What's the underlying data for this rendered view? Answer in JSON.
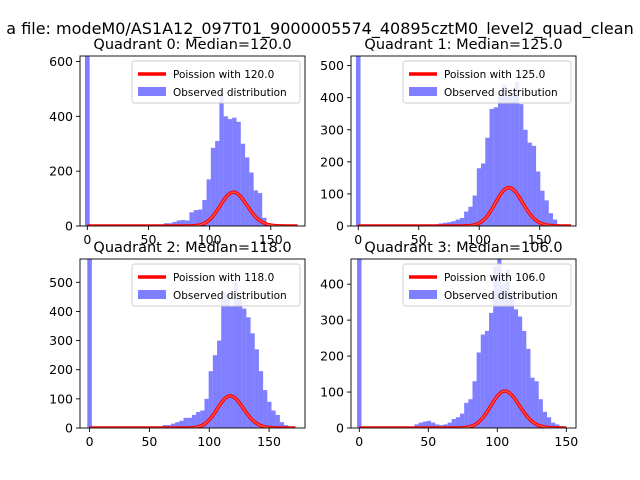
{
  "figure": {
    "suptitle": "a file: modeM0/AS1A12_097T01_9000005574_40895cztM0_level2_quad_clean"
  },
  "colors": {
    "hist": "#0000ff",
    "hist_alpha": 0.5,
    "curve": "#ff0000",
    "curve_core_alpha": 0.55
  },
  "chart_data": [
    {
      "type": "bar",
      "title": "Quadrant 0: Median=120.0",
      "legend": {
        "curve_label": "Poission with 120.0",
        "hist_label": "Observed distribution",
        "loc": "upper right"
      },
      "median": 120.0,
      "scale": 3380,
      "xlim": [
        -6,
        178
      ],
      "ylim": [
        0,
        620
      ],
      "xticks": [
        0,
        50,
        100,
        150
      ],
      "yticks": [
        0,
        200,
        400,
        600
      ],
      "spike": {
        "x": 0,
        "width": 3.8,
        "value": 620
      },
      "bin_edges": [
        52,
        55.5,
        59,
        62.5,
        66,
        69.5,
        73,
        76.5,
        80,
        83.5,
        87,
        90.5,
        94,
        97.5,
        101,
        104.5,
        108,
        111.5,
        115,
        118.5,
        122,
        125.5,
        129,
        132.5,
        136,
        139.5,
        143,
        146.5,
        150,
        153.5,
        157,
        160.5,
        164,
        167.5,
        171
      ],
      "counts": [
        5,
        5,
        5,
        10,
        10,
        15,
        20,
        22,
        20,
        50,
        58,
        60,
        95,
        170,
        285,
        310,
        485,
        400,
        390,
        395,
        380,
        300,
        250,
        195,
        130,
        120,
        30,
        10,
        5,
        5,
        5,
        2,
        0,
        0
      ],
      "curve_x_range": [
        0,
        172
      ]
    },
    {
      "type": "bar",
      "title": "Quadrant 1: Median=125.0",
      "legend": {
        "curve_label": "Poission with 125.0",
        "hist_label": "Observed distribution",
        "loc": "upper right"
      },
      "median": 125.0,
      "scale": 3350,
      "xlim": [
        -6,
        180
      ],
      "ylim": [
        0,
        530
      ],
      "xticks": [
        0,
        50,
        100,
        150
      ],
      "yticks": [
        0,
        100,
        200,
        300,
        400,
        500
      ],
      "spike": {
        "x": 0,
        "width": 3.8,
        "value": 530
      },
      "bin_edges": [
        56,
        59.5,
        63,
        66.5,
        70,
        73.5,
        77,
        80.5,
        84,
        87.5,
        91,
        94.5,
        98,
        101.5,
        105,
        108.5,
        112,
        115.5,
        119,
        122.5,
        126,
        129.5,
        133,
        136.5,
        140,
        143.5,
        147,
        150.5,
        154,
        157.5,
        161,
        164.5,
        168,
        171.5,
        175
      ],
      "counts": [
        3,
        4,
        5,
        8,
        10,
        12,
        15,
        20,
        25,
        45,
        60,
        95,
        180,
        195,
        275,
        365,
        370,
        415,
        440,
        405,
        415,
        450,
        380,
        300,
        260,
        250,
        170,
        110,
        80,
        40,
        20,
        5,
        2,
        0
      ],
      "curve_x_range": [
        0,
        176
      ]
    },
    {
      "type": "bar",
      "title": "Quadrant 2: Median=118.0",
      "legend": {
        "curve_label": "Poission with 118.0",
        "hist_label": "Observed distribution",
        "loc": "upper right"
      },
      "median": 118.0,
      "scale": 3000,
      "xlim": [
        -8,
        180
      ],
      "ylim": [
        0,
        580
      ],
      "xticks": [
        0,
        50,
        100,
        150
      ],
      "yticks": [
        0,
        100,
        200,
        300,
        400,
        500
      ],
      "spike": {
        "x": 0,
        "width": 3.8,
        "value": 580
      },
      "bin_edges": [
        54,
        57.5,
        61,
        64.5,
        68,
        71.5,
        75,
        78.5,
        82,
        85.5,
        89,
        92.5,
        96,
        99.5,
        103,
        106.5,
        110,
        113.5,
        117,
        120.5,
        124,
        127.5,
        131,
        134.5,
        138,
        141.5,
        145,
        148.5,
        152,
        155.5,
        159,
        162.5,
        166,
        169.5,
        173
      ],
      "counts": [
        5,
        5,
        10,
        10,
        15,
        20,
        25,
        35,
        35,
        45,
        55,
        60,
        100,
        195,
        250,
        300,
        470,
        460,
        420,
        500,
        440,
        410,
        380,
        325,
        270,
        195,
        130,
        90,
        60,
        45,
        20,
        10,
        5,
        0
      ],
      "curve_x_range": [
        0,
        172
      ]
    },
    {
      "type": "bar",
      "title": "Quadrant 3: Median=106.0",
      "legend": {
        "curve_label": "Poission with 106.0",
        "hist_label": "Observed distribution",
        "loc": "upper right"
      },
      "median": 106.0,
      "scale": 2650,
      "xlim": [
        -6,
        157
      ],
      "ylim": [
        0,
        470
      ],
      "xticks": [
        0,
        50,
        100,
        150
      ],
      "yticks": [
        0,
        100,
        200,
        300,
        400
      ],
      "spike": {
        "x": 0,
        "width": 3.2,
        "value": 470
      },
      "bin_edges": [
        40,
        43,
        46,
        49,
        52,
        55,
        58,
        61,
        64,
        67,
        70,
        73,
        76,
        79,
        82,
        85,
        88,
        91,
        94,
        97,
        100,
        103,
        106,
        109,
        112,
        115,
        118,
        121,
        124,
        127,
        130,
        133,
        136,
        139,
        142,
        145,
        148
      ],
      "counts": [
        10,
        15,
        18,
        20,
        15,
        10,
        8,
        10,
        15,
        25,
        30,
        40,
        70,
        80,
        130,
        210,
        260,
        270,
        320,
        450,
        470,
        400,
        440,
        380,
        330,
        310,
        270,
        220,
        140,
        130,
        80,
        45,
        30,
        15,
        10,
        5
      ],
      "curve_x_range": [
        0,
        150
      ]
    }
  ]
}
